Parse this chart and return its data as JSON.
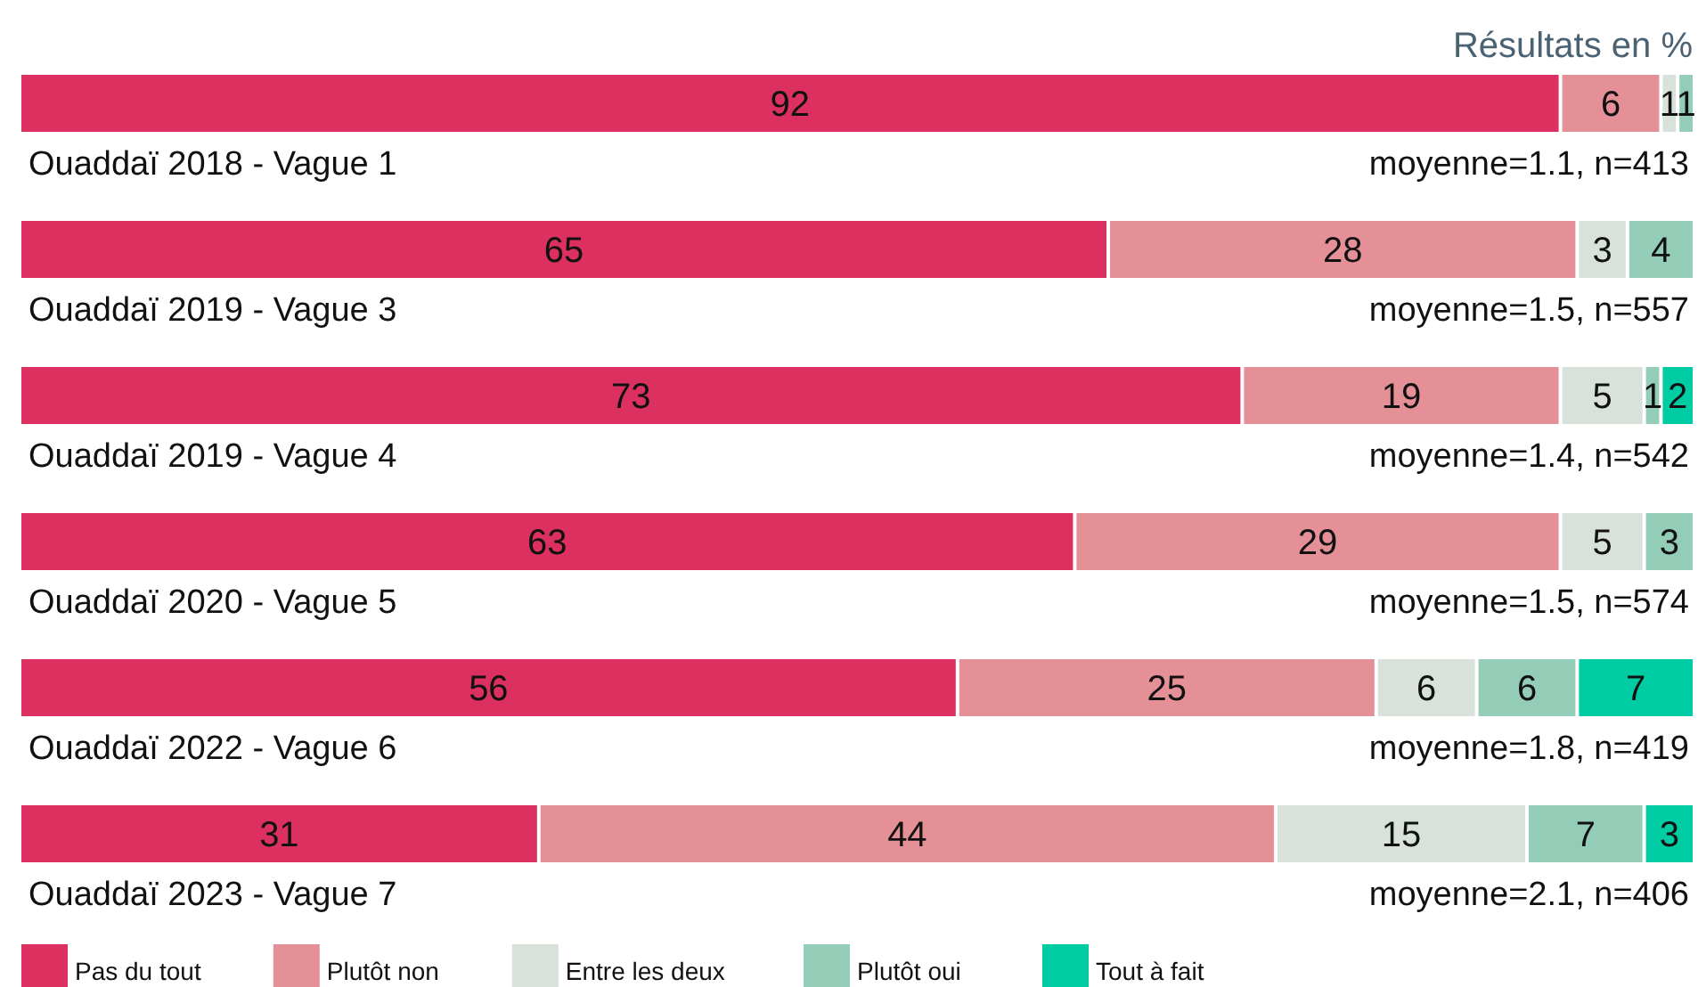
{
  "chart_data": {
    "type": "bar",
    "orientation": "horizontal",
    "stacked": true,
    "subtitle": "Résultats en %",
    "categories": [
      "Ouaddaï 2018 - Vague 1",
      "Ouaddaï 2019 - Vague 3",
      "Ouaddaï 2019 - Vague 4",
      "Ouaddaï 2020 - Vague 5",
      "Ouaddaï 2022 - Vague 6",
      "Ouaddaï 2023 - Vague 7"
    ],
    "series": [
      {
        "name": "Pas du tout",
        "color": "#dc3060",
        "values": [
          92,
          65,
          73,
          63,
          56,
          31
        ]
      },
      {
        "name": "Plutôt non",
        "color": "#e59097",
        "values": [
          6,
          28,
          19,
          29,
          25,
          44
        ]
      },
      {
        "name": "Entre les deux",
        "color": "#d8e2db",
        "values": [
          1,
          3,
          5,
          5,
          6,
          15
        ]
      },
      {
        "name": "Plutôt oui",
        "color": "#93ccb7",
        "values": [
          1,
          4,
          1,
          3,
          6,
          7
        ]
      },
      {
        "name": "Tout à fait",
        "color": "#00cca3",
        "values": [
          null,
          null,
          2,
          null,
          7,
          3
        ]
      }
    ],
    "xlim": [
      0,
      100
    ],
    "data_labels": true,
    "legend": "bottom left",
    "annotations": [
      "moyenne=1.1, n=413",
      "moyenne=1.5, n=557",
      "moyenne=1.4, n=542",
      "moyenne=1.5, n=574",
      "moyenne=1.8, n=419",
      "moyenne=2.1, n=406"
    ]
  }
}
